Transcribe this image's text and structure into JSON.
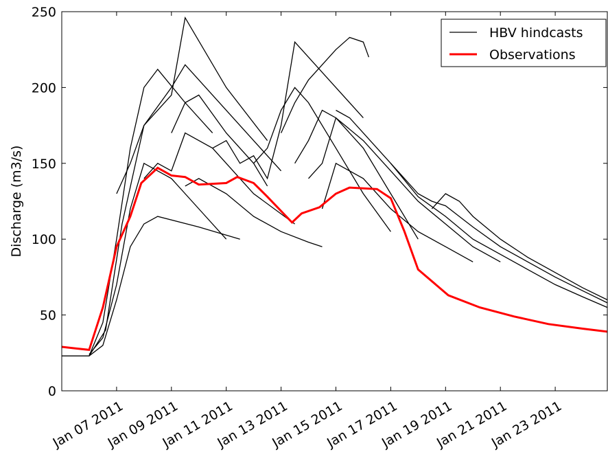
{
  "chart_data": {
    "type": "line",
    "y_label": "Discharge (m3/s)",
    "xlim": [
      5,
      24.9
    ],
    "xticks": [
      {
        "value": 7,
        "label": "Jan 07 2011"
      },
      {
        "value": 9,
        "label": "Jan 09 2011"
      },
      {
        "value": 11,
        "label": "Jan 11 2011"
      },
      {
        "value": 13,
        "label": "Jan 13 2011"
      },
      {
        "value": 15,
        "label": "Jan 15 2011"
      },
      {
        "value": 17,
        "label": "Jan 17 2011"
      },
      {
        "value": 19,
        "label": "Jan 19 2011"
      },
      {
        "value": 21,
        "label": "Jan 21 2011"
      },
      {
        "value": 23,
        "label": "Jan 23 2011"
      }
    ],
    "ylim": [
      0,
      250
    ],
    "yticks": [
      0,
      50,
      100,
      150,
      200,
      250
    ],
    "legend": "upper right",
    "series": [
      {
        "name": "HBV hindcasts",
        "color": "#000000",
        "lines": [
          {
            "x": [
              5,
              6,
              6.5,
              7,
              7.5,
              8,
              8.5,
              9.5,
              10.5
            ],
            "values": [
              23,
              23,
              45,
              100,
              160,
              200,
              212,
              190,
              170
            ]
          },
          {
            "x": [
              6,
              6.5,
              7,
              7.5,
              8,
              9,
              10,
              11
            ],
            "values": [
              24,
              35,
              70,
              120,
              150,
              140,
              120,
              100
            ]
          },
          {
            "x": [
              6,
              6.6,
              7.2,
              8,
              9,
              9.5,
              10.5,
              12,
              13
            ],
            "values": [
              23,
              40,
              110,
              175,
              200,
              215,
              195,
              165,
              145
            ]
          },
          {
            "x": [
              7,
              7.5,
              8,
              9,
              9.5,
              11,
              12.5
            ],
            "values": [
              130,
              150,
              175,
              195,
              246,
              200,
              165
            ]
          },
          {
            "x": [
              8,
              8.5,
              9,
              9.5,
              10.5,
              12,
              13.5
            ],
            "values": [
              140,
              150,
              145,
              170,
              160,
              130,
              110
            ]
          },
          {
            "x": [
              9,
              9.5,
              10,
              11,
              12,
              12.5
            ],
            "values": [
              170,
              190,
              195,
              170,
              150,
              135
            ]
          },
          {
            "x": [
              10.5,
              11,
              11.5,
              12,
              12.5,
              13,
              13.5,
              15,
              16
            ],
            "values": [
              160,
              165,
              150,
              155,
              140,
              175,
              230,
              200,
              180
            ]
          },
          {
            "x": [
              12,
              12.5,
              13,
              13.5,
              14,
              15,
              16,
              17
            ],
            "values": [
              150,
              160,
              185,
              200,
              190,
              160,
              130,
              105
            ]
          },
          {
            "x": [
              13,
              13.5,
              14,
              14.5,
              15,
              15.5,
              16,
              16.2
            ],
            "values": [
              170,
              190,
              205,
              215,
              225,
              233,
              230,
              220
            ]
          },
          {
            "x": [
              13.5,
              14,
              14.5,
              15,
              16,
              17,
              18
            ],
            "values": [
              150,
              165,
              185,
              180,
              160,
              130,
              100
            ]
          },
          {
            "x": [
              14,
              14.5,
              15,
              16,
              17,
              18,
              19,
              20,
              21
            ],
            "values": [
              140,
              150,
              180,
              165,
              145,
              125,
              110,
              95,
              85
            ]
          },
          {
            "x": [
              15,
              15.5,
              16,
              17,
              18,
              19,
              20,
              21,
              22,
              23,
              24,
              24.9
            ],
            "values": [
              185,
              180,
              170,
              150,
              128,
              115,
              100,
              90,
              80,
              70,
              62,
              55
            ]
          },
          {
            "x": [
              17,
              17.5,
              18,
              18.5,
              19,
              19.5,
              20,
              21,
              22,
              23,
              24,
              24.9
            ],
            "values": [
              150,
              140,
              130,
              125,
              122,
              115,
              108,
              95,
              85,
              75,
              66,
              58
            ]
          },
          {
            "x": [
              18.5,
              19,
              19.5,
              20,
              21,
              22,
              23,
              24,
              24.9
            ],
            "values": [
              120,
              130,
              125,
              115,
              100,
              88,
              78,
              68,
              60
            ]
          },
          {
            "x": [
              14.5,
              15,
              16,
              17,
              18,
              19,
              20
            ],
            "values": [
              120,
              150,
              140,
              120,
              105,
              95,
              85
            ]
          },
          {
            "x": [
              9.5,
              10,
              11,
              12,
              13,
              14,
              14.5
            ],
            "values": [
              135,
              140,
              130,
              115,
              105,
              98,
              95
            ]
          },
          {
            "x": [
              6,
              6.5,
              7,
              7.5,
              8,
              8.5,
              10,
              11.5
            ],
            "values": [
              23,
              30,
              60,
              95,
              110,
              115,
              108,
              100
            ]
          }
        ]
      },
      {
        "name": "Observations",
        "color": "#ff0000",
        "x": [
          5,
          5.5,
          6,
          6.5,
          7,
          7.5,
          7.9,
          8.5,
          9,
          9.5,
          10,
          11,
          11.4,
          12,
          12.5,
          13.4,
          13.75,
          14.4,
          15,
          15.5,
          16.5,
          17,
          17.5,
          18,
          19.1,
          20.25,
          21.5,
          22.75,
          24,
          24.9
        ],
        "values": [
          29,
          28,
          27,
          55,
          95,
          115,
          137,
          147,
          142,
          141,
          136,
          137,
          141,
          137,
          128,
          111,
          117,
          121,
          130,
          134,
          133,
          127,
          105,
          80,
          63,
          55,
          49,
          44,
          41,
          39
        ]
      }
    ]
  }
}
